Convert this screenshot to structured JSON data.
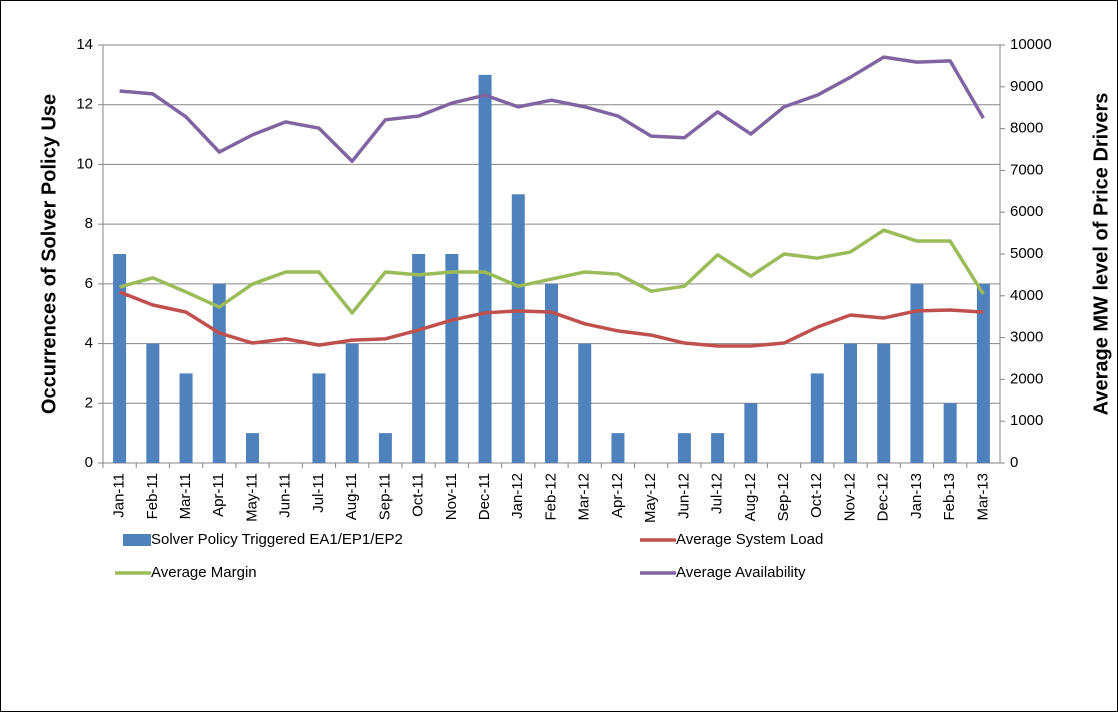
{
  "chart_data": {
    "type": "bar_line",
    "ylabel": "Occurrences of Solver Policy Use",
    "y2label": "Average MW level of Price Drivers",
    "categories": [
      "Jan-11",
      "Feb-11",
      "Mar-11",
      "Apr-11",
      "May-11",
      "Jun-11",
      "Jul-11",
      "Aug-11",
      "Sep-11",
      "Oct-11",
      "Nov-11",
      "Dec-11",
      "Jan-12",
      "Feb-12",
      "Mar-12",
      "Apr-12",
      "May-12",
      "Jun-12",
      "Jul-12",
      "Aug-12",
      "Sep-12",
      "Oct-12",
      "Nov-12",
      "Dec-12",
      "Jan-13",
      "Feb-13",
      "Mar-13"
    ],
    "series": [
      {
        "name": "Solver Policy Triggered EA1/EP1/EP2",
        "type": "bar",
        "color": "#4f81bd",
        "values": [
          7,
          4,
          3,
          6,
          1,
          0,
          3,
          4,
          1,
          7,
          7,
          13,
          9,
          6,
          4,
          1,
          0,
          1,
          1,
          2,
          0,
          3,
          4,
          4,
          6,
          2,
          6
        ]
      },
      {
        "name": "Average System Load",
        "type": "line",
        "axis": "y2",
        "color": "#c0504d",
        "values": [
          4090,
          3780,
          3610,
          3110,
          2870,
          2970,
          2820,
          2940,
          2970,
          3180,
          3420,
          3590,
          3640,
          3610,
          3330,
          3160,
          3060,
          2870,
          2800,
          2800,
          2870,
          3250,
          3540,
          3470,
          3640,
          3660,
          3610
        ]
      },
      {
        "name": "Average Margin",
        "type": "line",
        "axis": "y2",
        "color": "#9bbb59",
        "values": [
          4210,
          4430,
          4090,
          3730,
          4280,
          4570,
          4570,
          3590,
          4570,
          4500,
          4570,
          4570,
          4230,
          4400,
          4570,
          4520,
          4110,
          4230,
          4980,
          4470,
          5000,
          4900,
          5050,
          5570,
          5310,
          5310,
          4040
        ]
      },
      {
        "name": "Average Availability",
        "type": "line",
        "axis": "y2",
        "color": "#8064a2",
        "values": [
          8900,
          8830,
          8280,
          7440,
          7850,
          8160,
          8010,
          7220,
          8210,
          8300,
          8610,
          8800,
          8520,
          8680,
          8520,
          8300,
          7820,
          7780,
          8400,
          7870,
          8520,
          8800,
          9230,
          9710,
          9590,
          9620,
          8250
        ]
      }
    ],
    "ylim": [
      0,
      14
    ],
    "yticks": [
      0,
      2,
      4,
      6,
      8,
      10,
      12,
      14
    ],
    "y2lim": [
      0,
      10000
    ],
    "y2ticks": [
      0,
      1000,
      2000,
      3000,
      4000,
      5000,
      6000,
      7000,
      8000,
      9000,
      10000
    ],
    "grid": true,
    "legend": "bottom"
  }
}
